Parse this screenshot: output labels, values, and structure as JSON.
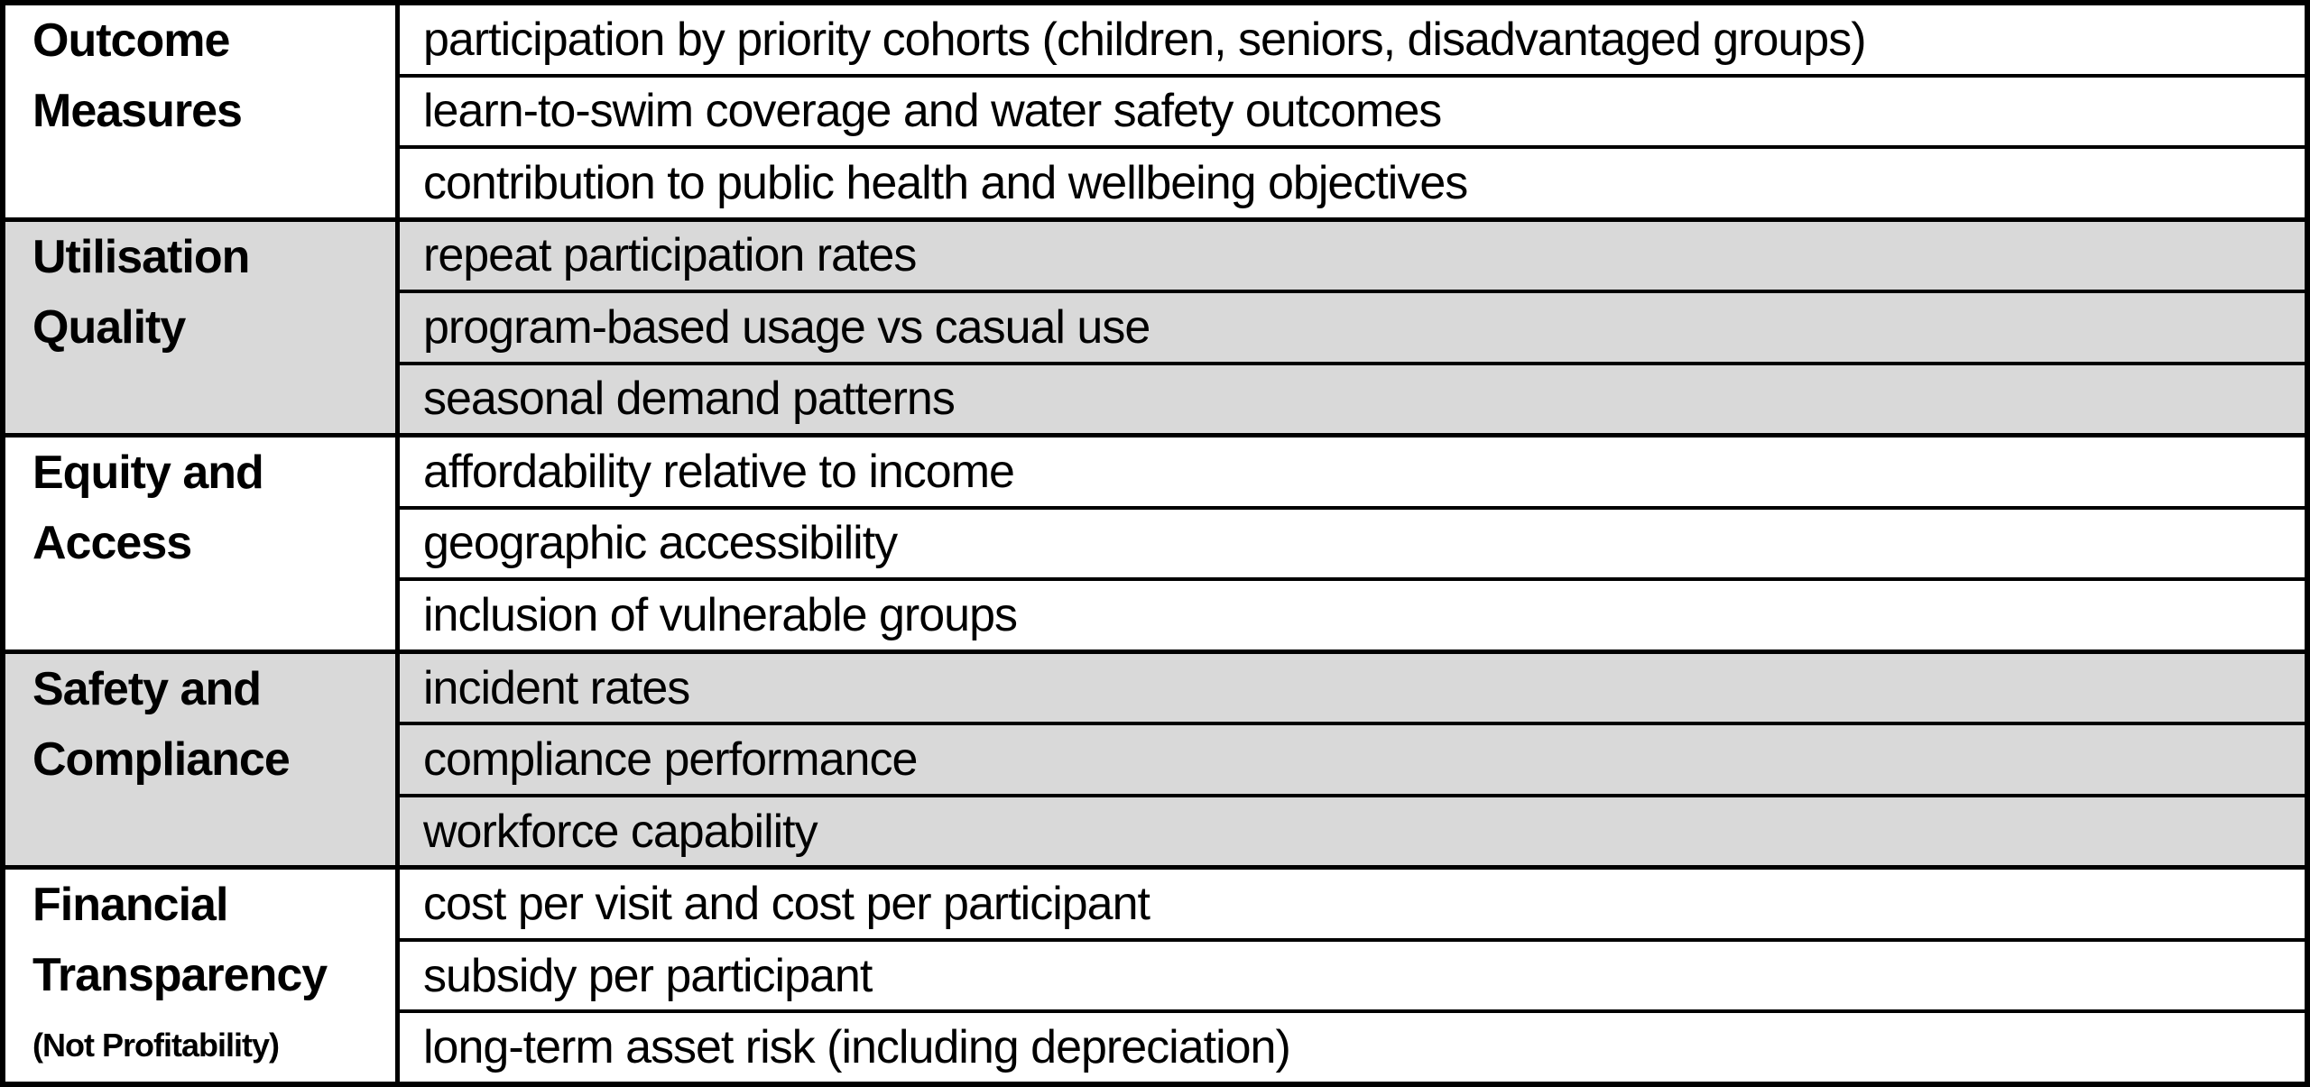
{
  "table": {
    "colors": {
      "band_white": "#ffffff",
      "band_gray": "#d9d9d9",
      "border": "#000000"
    },
    "sections": [
      {
        "category": "Outcome Measures",
        "rows": [
          "participation by priority cohorts (children, seniors, disadvantaged groups)",
          "learn-to-swim coverage and water safety outcomes",
          "contribution to public health and wellbeing objectives"
        ]
      },
      {
        "category": "Utilisation Quality",
        "rows": [
          "repeat participation rates",
          "program-based usage vs casual use",
          "seasonal demand patterns"
        ]
      },
      {
        "category": "Equity and Access",
        "rows": [
          "affordability relative to income",
          "geographic accessibility",
          "inclusion of vulnerable groups"
        ]
      },
      {
        "category": "Safety and Compliance",
        "rows": [
          "incident rates",
          "compliance performance",
          "workforce capability"
        ]
      },
      {
        "category": "Financial Transparency",
        "note": "(Not Profitability)",
        "rows": [
          "cost per visit and cost per participant",
          "subsidy per participant",
          "long-term asset risk (including depreciation)"
        ]
      }
    ]
  }
}
